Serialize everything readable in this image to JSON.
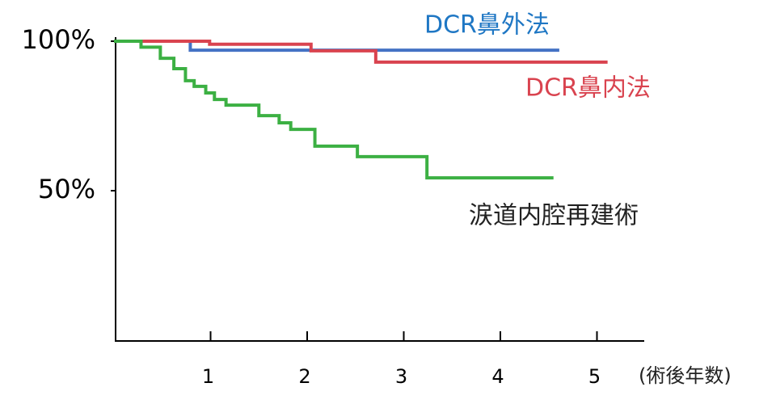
{
  "chart_data": {
    "type": "step",
    "x_label": "(術後年数)",
    "xlim": [
      0,
      5.5
    ],
    "xticks": [
      1,
      2,
      3,
      4,
      5
    ],
    "ylim": [
      0,
      100
    ],
    "yticks": [
      {
        "value": 50,
        "label": "50%"
      },
      {
        "value": 100,
        "label": "100%"
      }
    ],
    "series": [
      {
        "name": "DCR鼻外法",
        "color": "#4472c4",
        "x": [
          0,
          0.79,
          4.61
        ],
        "values": [
          100,
          97,
          97
        ]
      },
      {
        "name": "DCR鼻内法",
        "color": "#d9434f",
        "x": [
          0,
          0.99,
          2.04,
          2.71,
          5.11
        ],
        "values": [
          100,
          99,
          96.8,
          93,
          93
        ]
      },
      {
        "name": "涙道内腔再建術",
        "color": "#3cb043",
        "x": [
          0,
          0.28,
          0.48,
          0.62,
          0.74,
          0.83,
          0.95,
          1.04,
          1.16,
          1.5,
          1.71,
          1.83,
          2.08,
          2.52,
          3.24,
          4.55
        ],
        "values": [
          100,
          98,
          94.3,
          90.8,
          86.8,
          84.9,
          82.7,
          80.5,
          78.6,
          75.1,
          72.7,
          70.5,
          64.9,
          61.4,
          54.3,
          54.3
        ]
      }
    ]
  }
}
